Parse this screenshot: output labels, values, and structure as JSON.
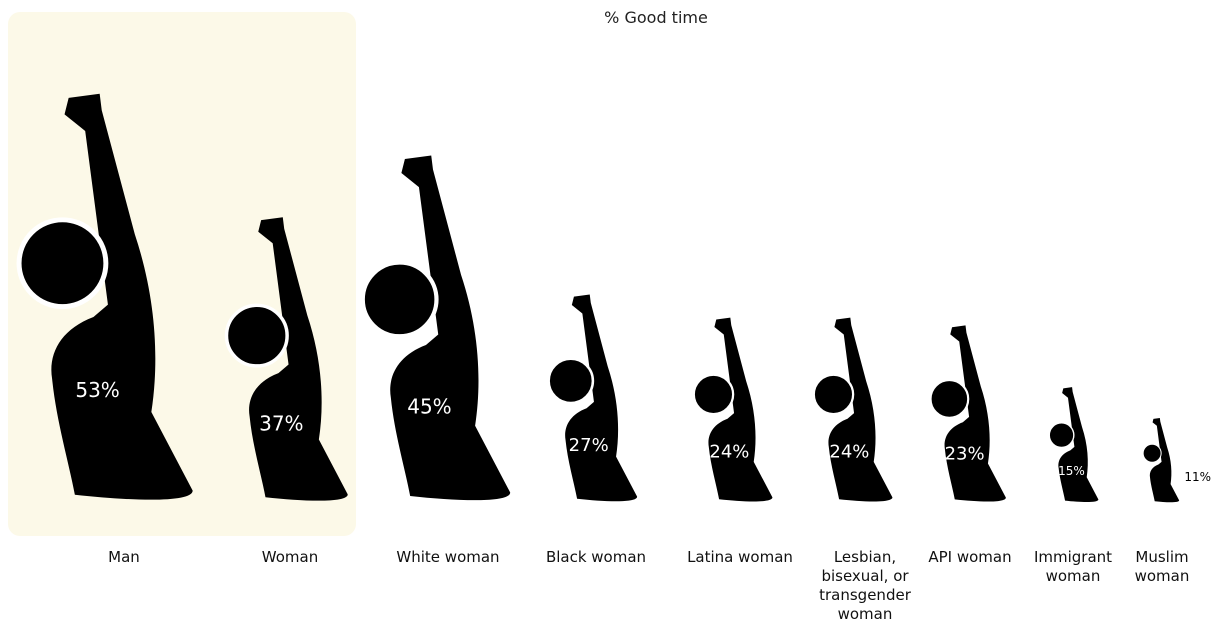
{
  "chart_data": {
    "type": "pictograph",
    "title": "% Good time",
    "categories": [
      "Man",
      "Woman",
      "White woman",
      "Black woman",
      "Latina woman",
      "Lesbian, bisexual, or transgender woman",
      "API woman",
      "Immigrant woman",
      "Muslim woman"
    ],
    "values": [
      53,
      37,
      45,
      27,
      24,
      24,
      23,
      15,
      11
    ],
    "value_labels": [
      "53%",
      "37%",
      "45%",
      "27%",
      "24%",
      "24%",
      "23%",
      "15%",
      "11%"
    ],
    "color": "#000000"
  }
}
